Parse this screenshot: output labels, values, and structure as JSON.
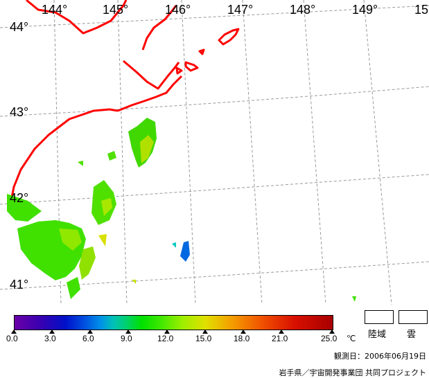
{
  "map": {
    "lon_labels": [
      "144°",
      "145°",
      "146°",
      "147°",
      "148°",
      "149°",
      "15"
    ],
    "lat_labels": [
      "44°",
      "43°",
      "42°",
      "41°"
    ]
  },
  "colorbar": {
    "ticks": [
      "0.0",
      "3.0",
      "6.0",
      "9.0",
      "12.0",
      "15.0",
      "18.0",
      "21.0",
      "25.0"
    ],
    "unit": "℃"
  },
  "legend": {
    "land": "陸域",
    "cloud": "雲"
  },
  "footer": {
    "date": "観測日：2006年06月19日",
    "credit": "岩手県／宇宙開発事業団 共同プロジェクト"
  },
  "colors": {
    "coastline": "#ff0000",
    "grid": "#888888",
    "sst_main": "#40e000",
    "sst_warm": "#b0e800",
    "sst_cold": "#0070e0"
  }
}
